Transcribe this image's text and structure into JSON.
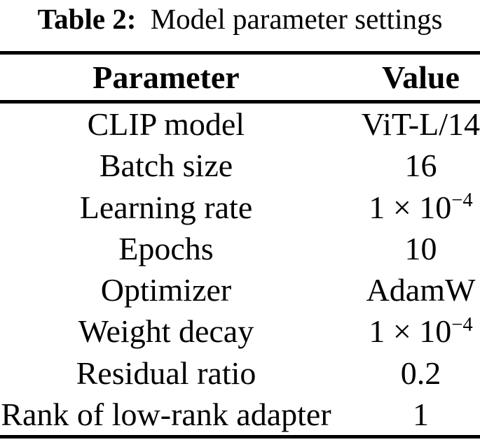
{
  "caption": {
    "label": "Table 2:",
    "title": "Model parameter settings"
  },
  "table": {
    "headers": {
      "parameter": "Parameter",
      "value": "Value"
    },
    "rows": [
      {
        "parameter": "CLIP model",
        "value": "ViT-L/14"
      },
      {
        "parameter": "Batch size",
        "value": "16"
      },
      {
        "parameter": "Learning rate",
        "value": "1 × 10",
        "value_sup": "−4"
      },
      {
        "parameter": "Epochs",
        "value": "10"
      },
      {
        "parameter": "Optimizer",
        "value": "AdamW"
      },
      {
        "parameter": "Weight decay",
        "value": "1 × 10",
        "value_sup": "−4"
      },
      {
        "parameter": "Residual ratio",
        "value": "0.2"
      },
      {
        "parameter": "Rank of low-rank adapter",
        "value": "1"
      }
    ]
  },
  "colors": {
    "background": "#ffffff",
    "text": "#000000",
    "rule": "#000000"
  }
}
